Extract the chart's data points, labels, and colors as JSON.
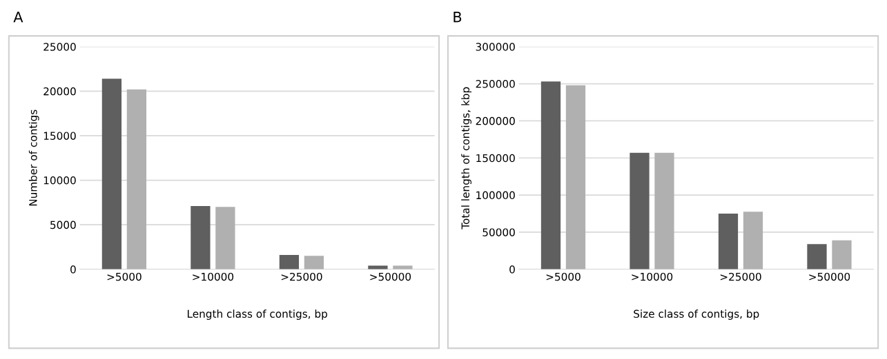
{
  "chart_data": [
    {
      "type": "bar",
      "title": "A",
      "xlabel": "Length class of contigs, bp",
      "ylabel": "Number of contigs",
      "categories": [
        ">5000",
        ">10000",
        ">25000",
        ">50000"
      ],
      "series": [
        {
          "color": "#5f5f5f",
          "values": [
            21400,
            7100,
            1600,
            400
          ]
        },
        {
          "color": "#b0b0b0",
          "values": [
            20200,
            7000,
            1500,
            400
          ]
        }
      ],
      "ylim": [
        0,
        25000
      ],
      "yticks": [
        0,
        5000,
        10000,
        15000,
        20000,
        25000
      ],
      "grid": "y"
    },
    {
      "type": "bar",
      "title": "B",
      "xlabel": "Size class of contigs, bp",
      "ylabel": "Total length of contigs, kbp",
      "categories": [
        ">5000",
        ">10000",
        ">25000",
        ">50000"
      ],
      "series": [
        {
          "color": "#5f5f5f",
          "values": [
            253000,
            157000,
            75000,
            34000
          ]
        },
        {
          "color": "#b0b0b0",
          "values": [
            248000,
            157000,
            77500,
            39000
          ]
        }
      ],
      "ylim": [
        0,
        300000
      ],
      "yticks": [
        0,
        50000,
        100000,
        150000,
        200000,
        250000,
        300000
      ],
      "grid": "y"
    }
  ]
}
